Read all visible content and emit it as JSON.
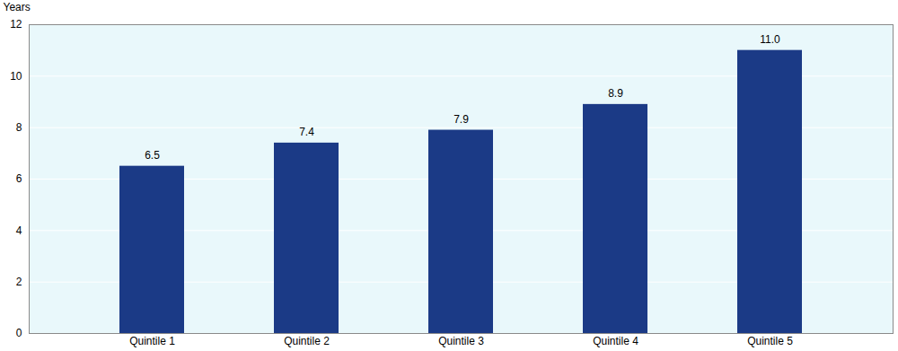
{
  "chart_data": {
    "type": "bar",
    "y_label": "Years",
    "categories": [
      "Quintile 1",
      "Quintile 2",
      "Quintile 3",
      "Quintile 4",
      "Quintile 5"
    ],
    "values": [
      6.5,
      7.4,
      7.9,
      8.9,
      11.0
    ],
    "value_labels": [
      "6.5",
      "7.4",
      "7.9",
      "8.9",
      "11.0"
    ],
    "color": "#1b3a86",
    "ylim": [
      0,
      12
    ],
    "yticks": [
      0,
      2,
      4,
      6,
      8,
      10,
      12
    ],
    "grid": true,
    "data_labels": true
  }
}
